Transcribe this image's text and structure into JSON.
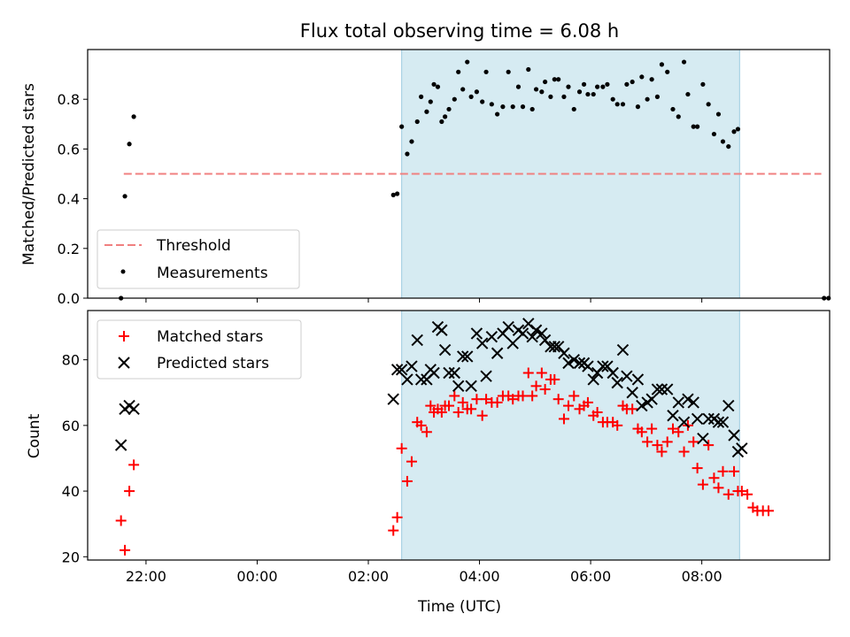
{
  "chart_data": {
    "type": "scatter",
    "title": "Flux total observing time = 6.08 h",
    "xlabel": "Time (UTC)",
    "x_tick_labels": [
      "22:00",
      "00:00",
      "02:00",
      "04:00",
      "06:00",
      "08:00"
    ],
    "x_tick_hours": [
      22,
      24,
      26,
      28,
      30,
      32
    ],
    "xlim_hours": [
      20.95,
      34.3
    ],
    "highlight_span_hours": [
      26.6,
      32.68
    ],
    "highlight_color": "#add8e6",
    "top_panel": {
      "ylabel": "Matched/Predicted stars",
      "ylim": [
        0,
        1.0
      ],
      "y_ticks": [
        0.0,
        0.2,
        0.4,
        0.6,
        0.8
      ],
      "y_tick_labels": [
        "0.0",
        "0.2",
        "0.4",
        "0.6",
        "0.8"
      ],
      "threshold": {
        "name": "Threshold",
        "value": 0.5,
        "x_range": [
          21.6,
          34.15
        ],
        "color": "#f08080",
        "style": "dashed"
      },
      "measurements": {
        "name": "Measurements",
        "color": "#000000",
        "x": [
          21.55,
          21.62,
          21.7,
          21.78,
          26.45,
          26.52,
          26.6,
          26.7,
          26.78,
          26.88,
          26.95,
          27.05,
          27.12,
          27.18,
          27.25,
          27.32,
          27.38,
          27.45,
          27.55,
          27.62,
          27.7,
          27.78,
          27.85,
          27.95,
          28.05,
          28.12,
          28.22,
          28.32,
          28.42,
          28.52,
          28.6,
          28.7,
          28.78,
          28.88,
          28.95,
          29.02,
          29.12,
          29.18,
          29.28,
          29.35,
          29.42,
          29.52,
          29.6,
          29.7,
          29.8,
          29.88,
          29.95,
          30.05,
          30.12,
          30.22,
          30.3,
          30.4,
          30.48,
          30.58,
          30.65,
          30.75,
          30.85,
          30.92,
          31.02,
          31.1,
          31.2,
          31.28,
          31.38,
          31.48,
          31.58,
          31.68,
          31.75,
          31.85,
          31.92,
          32.02,
          32.12,
          32.22,
          32.3,
          32.38,
          32.48,
          32.58,
          32.65,
          34.2,
          34.28
        ],
        "y": [
          0.0,
          0.41,
          0.62,
          0.73,
          0.415,
          0.42,
          0.69,
          0.58,
          0.63,
          0.71,
          0.81,
          0.75,
          0.79,
          0.86,
          0.85,
          0.71,
          0.73,
          0.76,
          0.8,
          0.91,
          0.84,
          0.95,
          0.81,
          0.83,
          0.79,
          0.91,
          0.78,
          0.74,
          0.77,
          0.91,
          0.77,
          0.85,
          0.77,
          0.92,
          0.76,
          0.84,
          0.83,
          0.87,
          0.81,
          0.88,
          0.88,
          0.81,
          0.85,
          0.76,
          0.83,
          0.86,
          0.82,
          0.82,
          0.85,
          0.85,
          0.86,
          0.8,
          0.78,
          0.78,
          0.86,
          0.87,
          0.77,
          0.89,
          0.8,
          0.88,
          0.81,
          0.94,
          0.91,
          0.76,
          0.73,
          0.95,
          0.82,
          0.69,
          0.69,
          0.86,
          0.78,
          0.66,
          0.74,
          0.63,
          0.61,
          0.67,
          0.68,
          0.0,
          0.0
        ]
      }
    },
    "bottom_panel": {
      "ylabel": "Count",
      "ylim": [
        19,
        95
      ],
      "y_ticks": [
        20,
        40,
        60,
        80
      ],
      "y_tick_labels": [
        "20",
        "40",
        "60",
        "80"
      ],
      "series": [
        {
          "name": "Matched stars",
          "marker": "+",
          "color": "#ff0000",
          "x": [
            21.55,
            21.62,
            21.7,
            21.78,
            26.45,
            26.52,
            26.6,
            26.7,
            26.78,
            26.88,
            26.95,
            27.05,
            27.12,
            27.18,
            27.25,
            27.32,
            27.38,
            27.45,
            27.55,
            27.62,
            27.7,
            27.78,
            27.85,
            27.95,
            28.05,
            28.12,
            28.22,
            28.32,
            28.42,
            28.52,
            28.6,
            28.7,
            28.78,
            28.88,
            28.95,
            29.02,
            29.12,
            29.18,
            29.28,
            29.35,
            29.42,
            29.52,
            29.6,
            29.7,
            29.8,
            29.88,
            29.95,
            30.05,
            30.12,
            30.22,
            30.3,
            30.4,
            30.48,
            30.58,
            30.65,
            30.75,
            30.85,
            30.92,
            31.02,
            31.1,
            31.2,
            31.28,
            31.38,
            31.48,
            31.58,
            31.68,
            31.75,
            31.85,
            31.92,
            32.02,
            32.12,
            32.22,
            32.3,
            32.38,
            32.48,
            32.58,
            32.65,
            32.72,
            32.82,
            32.92
          ],
          "y": [
            31,
            22,
            40,
            48,
            28,
            32,
            53,
            43,
            49,
            61,
            60,
            58,
            66,
            64,
            65,
            64,
            66,
            66,
            69,
            64,
            67,
            65,
            65,
            68,
            63,
            68,
            67,
            67,
            69,
            69,
            68,
            69,
            69,
            76,
            69,
            72,
            76,
            71,
            74,
            74,
            68,
            62,
            66,
            69,
            65,
            66,
            67,
            63,
            64,
            61,
            61,
            61,
            60,
            66,
            65,
            65,
            59,
            58,
            55,
            59,
            54,
            52,
            55,
            59,
            58,
            52,
            60,
            55,
            47,
            42,
            54,
            44,
            41,
            46,
            39,
            46,
            40,
            40,
            39,
            35
          ],
          "extra_points": [
            [
              33.0,
              34
            ],
            [
              33.1,
              34
            ],
            [
              33.2,
              34
            ]
          ]
        },
        {
          "name": "Predicted stars",
          "marker": "x",
          "color": "#000000",
          "x": [
            21.55,
            21.62,
            21.7,
            21.78,
            26.45,
            26.52,
            26.6,
            26.7,
            26.78,
            26.88,
            26.95,
            27.05,
            27.12,
            27.18,
            27.25,
            27.32,
            27.38,
            27.45,
            27.55,
            27.62,
            27.7,
            27.78,
            27.85,
            27.95,
            28.05,
            28.12,
            28.22,
            28.32,
            28.42,
            28.52,
            28.6,
            28.7,
            28.78,
            28.88,
            28.95,
            29.02,
            29.12,
            29.18,
            29.28,
            29.35,
            29.42,
            29.52,
            29.6,
            29.7,
            29.8,
            29.88,
            29.95,
            30.05,
            30.12,
            30.22,
            30.3,
            30.4,
            30.48,
            30.58,
            30.65,
            30.75,
            30.85,
            30.92,
            31.02,
            31.1,
            31.2,
            31.28,
            31.38,
            31.48,
            31.58,
            31.68,
            31.75,
            31.85,
            31.92,
            32.02,
            32.12,
            32.22,
            32.3,
            32.38,
            32.48,
            32.58,
            32.65,
            32.72
          ],
          "y": [
            54,
            65,
            66,
            65,
            68,
            77,
            77,
            74,
            78,
            86,
            74,
            74,
            77,
            76,
            90,
            89,
            83,
            76,
            76,
            72,
            81,
            81,
            72,
            88,
            85,
            75,
            87,
            82,
            88,
            90,
            85,
            89,
            88,
            91,
            87,
            89,
            88,
            86,
            84,
            84,
            84,
            82,
            79,
            80,
            79,
            79,
            78,
            74,
            76,
            78,
            78,
            76,
            73,
            83,
            75,
            70,
            74,
            66,
            67,
            68,
            71,
            71,
            71,
            63,
            67,
            61,
            68,
            67,
            62,
            56,
            62,
            62,
            61,
            61,
            66,
            57,
            52,
            53
          ]
        }
      ]
    }
  }
}
